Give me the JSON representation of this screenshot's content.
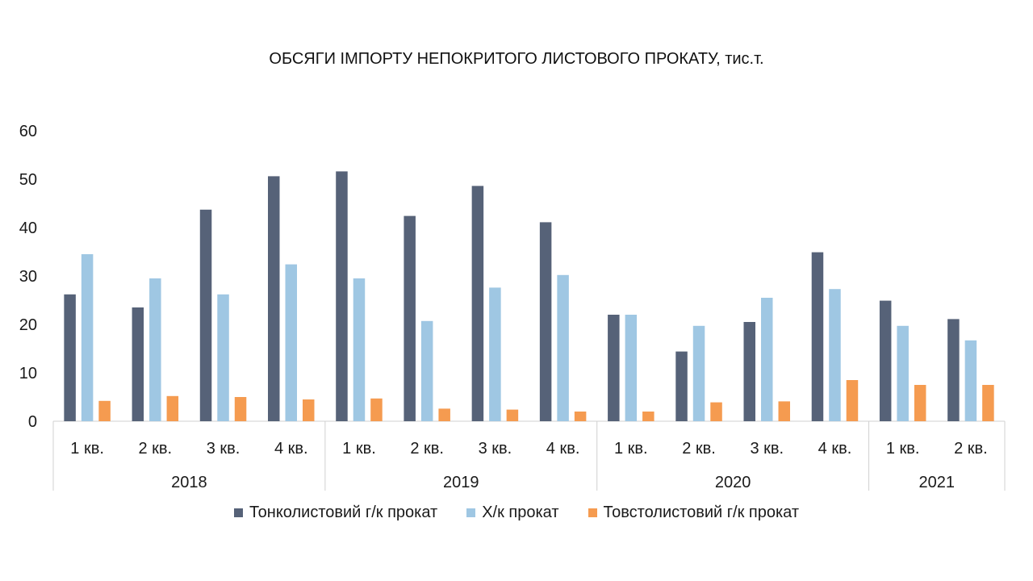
{
  "chart_data": {
    "type": "bar",
    "title": "ОБСЯГИ ІМПОРТУ НЕПОКРИТОГО ЛИСТОВОГО ПРОКАТУ, тис.т.",
    "xlabel": "",
    "ylabel": "",
    "ylim": [
      0,
      60
    ],
    "yticks": [
      0,
      10,
      20,
      30,
      40,
      50,
      60
    ],
    "grid": false,
    "legend_position": "bottom",
    "groups": [
      {
        "label": "2018",
        "categories": [
          "1 кв.",
          "2 кв.",
          "3 кв.",
          "4 кв."
        ]
      },
      {
        "label": "2019",
        "categories": [
          "1 кв.",
          "2 кв.",
          "3 кв.",
          "4 кв."
        ]
      },
      {
        "label": "2020",
        "categories": [
          "1 кв.",
          "2 кв.",
          "3 кв.",
          "4 кв."
        ]
      },
      {
        "label": "2021",
        "categories": [
          "1 кв.",
          "2 кв."
        ]
      }
    ],
    "series": [
      {
        "name": "Тонколистовий г/к прокат",
        "color": "#566278",
        "values": [
          26.2,
          23.5,
          43.7,
          50.6,
          51.6,
          42.4,
          48.6,
          41.1,
          22.0,
          14.4,
          20.5,
          34.9,
          24.9,
          21.1
        ]
      },
      {
        "name": "Х/к прокат",
        "color": "#9fc7e3",
        "values": [
          34.5,
          29.5,
          26.2,
          32.4,
          29.5,
          20.7,
          27.6,
          30.2,
          22.0,
          19.7,
          25.5,
          27.3,
          19.7,
          16.7
        ]
      },
      {
        "name": "Товстолистовий г/к прокат",
        "color": "#f59b50",
        "values": [
          4.2,
          5.2,
          5.0,
          4.5,
          4.7,
          2.6,
          2.4,
          2.0,
          2.0,
          3.9,
          4.1,
          8.5,
          7.5,
          7.5
        ]
      }
    ]
  }
}
